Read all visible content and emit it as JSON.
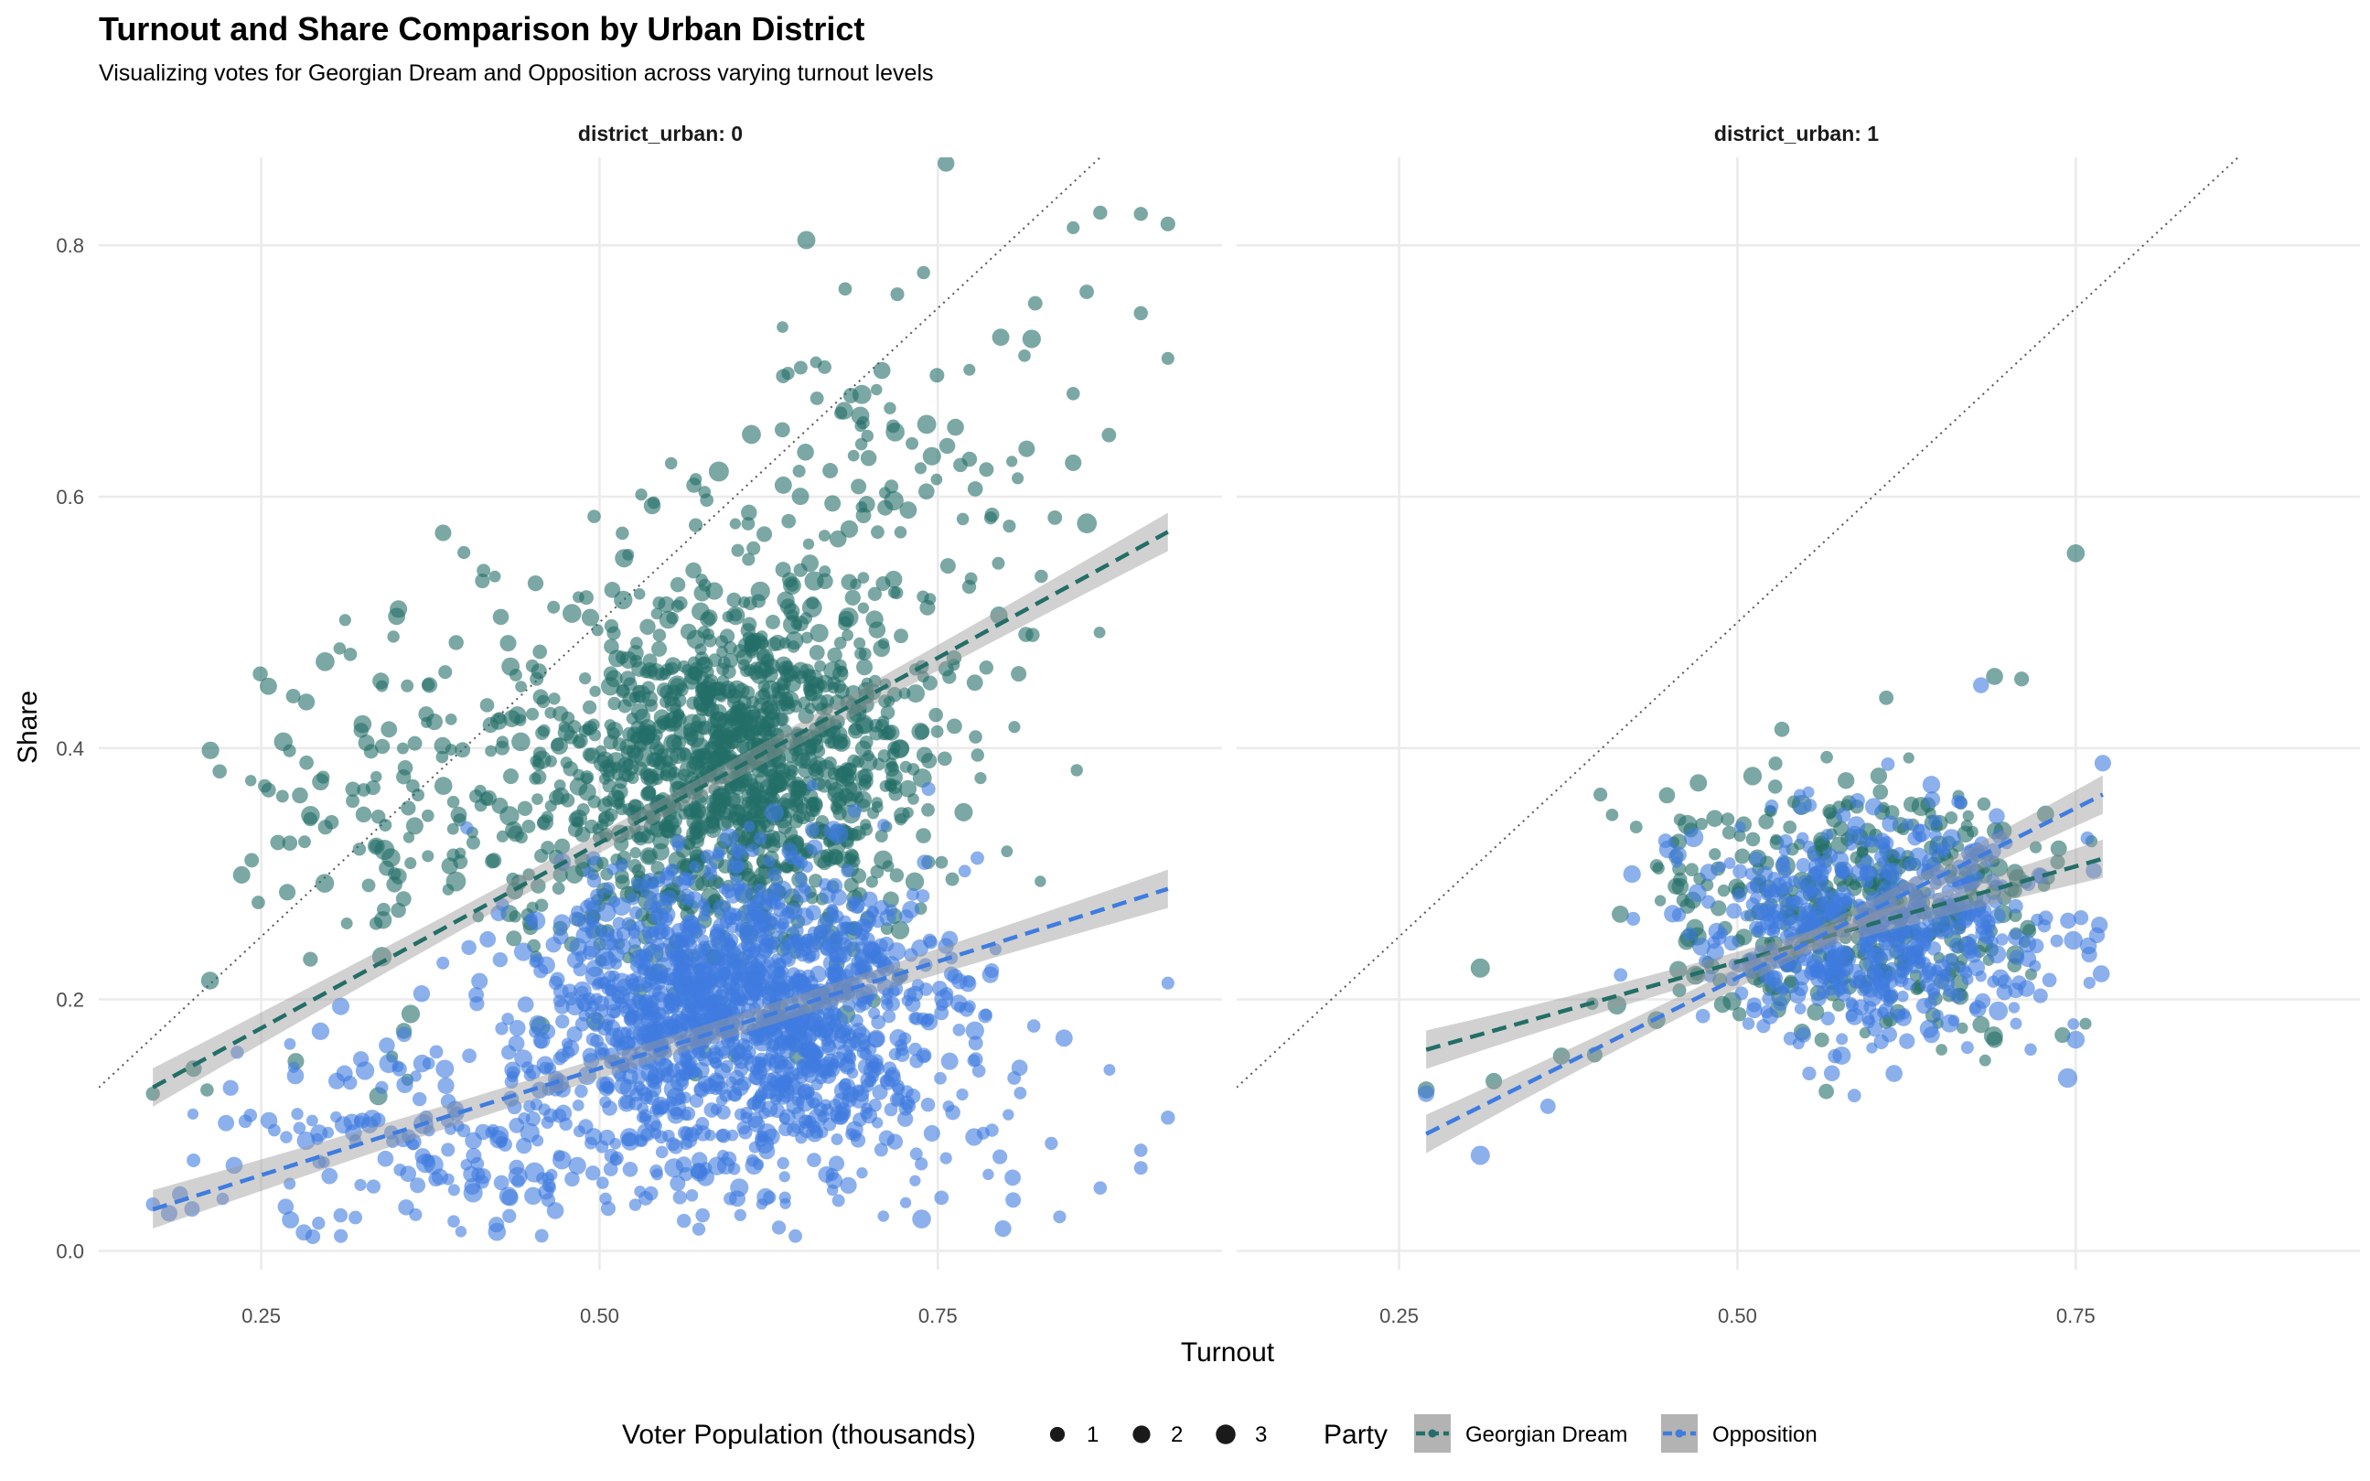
{
  "chart_data": {
    "type": "scatter",
    "title": "Turnout and Share Comparison by Urban District",
    "subtitle": "Visualizing votes for Georgian Dream and Opposition across varying turnout levels",
    "xlabel": "Turnout",
    "ylabel": "Share",
    "xlim": [
      0.13,
      0.96
    ],
    "ylim": [
      -0.015,
      0.87
    ],
    "x_ticks": [
      0.25,
      0.5,
      0.75
    ],
    "x_tick_labels": [
      "0.25",
      "0.50",
      "0.75"
    ],
    "y_ticks": [
      0.0,
      0.2,
      0.4,
      0.6,
      0.8
    ],
    "y_tick_labels": [
      "0.0",
      "0.2",
      "0.4",
      "0.6",
      "0.8"
    ],
    "grid": true,
    "reference_line": {
      "type": "y = x",
      "style": "dotted",
      "color": "#555555"
    },
    "series": [
      {
        "name": "Georgian Dream",
        "color": "#236e67"
      },
      {
        "name": "Opposition",
        "color": "#3f7ce0"
      }
    ],
    "panels": [
      {
        "strip_label": "district_urban: 0",
        "x_range": [
          0.17,
          0.92
        ],
        "fits": {
          "Georgian Dream": {
            "x": [
              0.17,
              0.92
            ],
            "y": [
              0.13,
              0.572
            ]
          },
          "Opposition": {
            "x": [
              0.17,
              0.92
            ],
            "y": [
              0.033,
              0.288
            ]
          }
        },
        "clusters": [
          {
            "series": "Georgian Dream",
            "n": 1150,
            "cx": 0.61,
            "cy": 0.385,
            "sx": 0.065,
            "sy": 0.075
          },
          {
            "series": "Georgian Dream",
            "n": 300,
            "cx": 0.43,
            "cy": 0.36,
            "sx": 0.11,
            "sy": 0.09
          },
          {
            "series": "Georgian Dream",
            "n": 110,
            "cx": 0.72,
            "cy": 0.61,
            "sx": 0.07,
            "sy": 0.09
          },
          {
            "series": "Opposition",
            "n": 1150,
            "cx": 0.6,
            "cy": 0.2,
            "sx": 0.07,
            "sy": 0.05
          },
          {
            "series": "Opposition",
            "n": 260,
            "cx": 0.42,
            "cy": 0.09,
            "sx": 0.1,
            "sy": 0.045
          },
          {
            "series": "Opposition",
            "n": 240,
            "cx": 0.67,
            "cy": 0.14,
            "sx": 0.09,
            "sy": 0.08
          }
        ],
        "points": [
          {
            "series": "Georgian Dream",
            "x": 0.87,
            "y": 0.826,
            "pop": 0.8
          },
          {
            "series": "Georgian Dream",
            "x": 0.9,
            "y": 0.825,
            "pop": 0.8
          },
          {
            "series": "Georgian Dream",
            "x": 0.92,
            "y": 0.817,
            "pop": 1.0
          },
          {
            "series": "Georgian Dream",
            "x": 0.85,
            "y": 0.814,
            "pop": 0.5
          },
          {
            "series": "Georgian Dream",
            "x": 0.86,
            "y": 0.763,
            "pop": 0.9
          },
          {
            "series": "Georgian Dream",
            "x": 0.9,
            "y": 0.746,
            "pop": 0.8
          },
          {
            "series": "Georgian Dream",
            "x": 0.92,
            "y": 0.71,
            "pop": 0.5
          },
          {
            "series": "Georgian Dream",
            "x": 0.85,
            "y": 0.682,
            "pop": 0.6
          },
          {
            "series": "Georgian Dream",
            "x": 0.85,
            "y": 0.627,
            "pop": 1.6
          },
          {
            "series": "Georgian Dream",
            "x": 0.17,
            "y": 0.125,
            "pop": 0.8
          },
          {
            "series": "Georgian Dream",
            "x": 0.2,
            "y": 0.145,
            "pop": 1.6
          },
          {
            "series": "Georgian Dream",
            "x": 0.21,
            "y": 0.128,
            "pop": 0.6
          },
          {
            "series": "Georgian Dream",
            "x": 0.82,
            "y": 0.49,
            "pop": 0.8
          },
          {
            "series": "Opposition",
            "x": 0.17,
            "y": 0.037,
            "pop": 0.8
          },
          {
            "series": "Opposition",
            "x": 0.19,
            "y": 0.045,
            "pop": 1.4
          },
          {
            "series": "Opposition",
            "x": 0.2,
            "y": 0.072,
            "pop": 0.7
          },
          {
            "series": "Opposition",
            "x": 0.23,
            "y": 0.068,
            "pop": 1.8
          },
          {
            "series": "Opposition",
            "x": 0.92,
            "y": 0.106,
            "pop": 0.8
          },
          {
            "series": "Opposition",
            "x": 0.92,
            "y": 0.213,
            "pop": 0.5
          },
          {
            "series": "Opposition",
            "x": 0.9,
            "y": 0.08,
            "pop": 0.6
          },
          {
            "series": "Opposition",
            "x": 0.9,
            "y": 0.066,
            "pop": 0.7
          },
          {
            "series": "Opposition",
            "x": 0.87,
            "y": 0.05,
            "pop": 0.6
          },
          {
            "series": "Opposition",
            "x": 0.84,
            "y": 0.027,
            "pop": 0.5
          },
          {
            "series": "Opposition",
            "x": 0.79,
            "y": 0.096,
            "pop": 0.6
          },
          {
            "series": "Opposition",
            "x": 0.76,
            "y": 0.233,
            "pop": 0.5
          }
        ]
      },
      {
        "strip_label": "district_urban: 1",
        "x_range": [
          0.27,
          0.77
        ],
        "fits": {
          "Georgian Dream": {
            "x": [
              0.27,
              0.77
            ],
            "y": [
              0.16,
              0.312
            ]
          },
          "Opposition": {
            "x": [
              0.27,
              0.77
            ],
            "y": [
              0.093,
              0.363
            ]
          }
        },
        "clusters": [
          {
            "series": "Georgian Dream",
            "n": 420,
            "cx": 0.59,
            "cy": 0.275,
            "sx": 0.075,
            "sy": 0.05
          },
          {
            "series": "Opposition",
            "n": 560,
            "cx": 0.6,
            "cy": 0.255,
            "sx": 0.07,
            "sy": 0.045
          }
        ],
        "points": [
          {
            "series": "Georgian Dream",
            "x": 0.75,
            "y": 0.555,
            "pop": 2.2
          },
          {
            "series": "Georgian Dream",
            "x": 0.69,
            "y": 0.457,
            "pop": 1.8
          },
          {
            "series": "Georgian Dream",
            "x": 0.71,
            "y": 0.455,
            "pop": 1.0
          },
          {
            "series": "Georgian Dream",
            "x": 0.61,
            "y": 0.44,
            "pop": 0.9
          },
          {
            "series": "Georgian Dream",
            "x": 0.27,
            "y": 0.128,
            "pop": 1.8
          },
          {
            "series": "Georgian Dream",
            "x": 0.32,
            "y": 0.135,
            "pop": 1.6
          },
          {
            "series": "Georgian Dream",
            "x": 0.31,
            "y": 0.225,
            "pop": 2.8
          },
          {
            "series": "Georgian Dream",
            "x": 0.37,
            "y": 0.155,
            "pop": 1.8
          },
          {
            "series": "Georgian Dream",
            "x": 0.68,
            "y": 0.18,
            "pop": 1.8
          },
          {
            "series": "Georgian Dream",
            "x": 0.69,
            "y": 0.168,
            "pop": 1.6
          },
          {
            "series": "Opposition",
            "x": 0.31,
            "y": 0.076,
            "pop": 2.8
          },
          {
            "series": "Opposition",
            "x": 0.27,
            "y": 0.125,
            "pop": 1.6
          },
          {
            "series": "Opposition",
            "x": 0.75,
            "y": 0.168,
            "pop": 2.2
          },
          {
            "series": "Opposition",
            "x": 0.36,
            "y": 0.115,
            "pop": 1.2
          },
          {
            "series": "Opposition",
            "x": 0.68,
            "y": 0.45,
            "pop": 1.4
          },
          {
            "series": "Opposition",
            "x": 0.77,
            "y": 0.388,
            "pop": 1.6
          }
        ]
      }
    ]
  },
  "legend": {
    "size_title": "Voter Population (thousands)",
    "size_items": [
      {
        "label": "1",
        "value": 1
      },
      {
        "label": "2",
        "value": 2
      },
      {
        "label": "3",
        "value": 3
      }
    ],
    "party_title": "Party",
    "party_items": [
      {
        "label": "Georgian Dream",
        "color": "#236e67"
      },
      {
        "label": "Opposition",
        "color": "#3f7ce0"
      }
    ],
    "key_background": "#b3b3b3"
  }
}
